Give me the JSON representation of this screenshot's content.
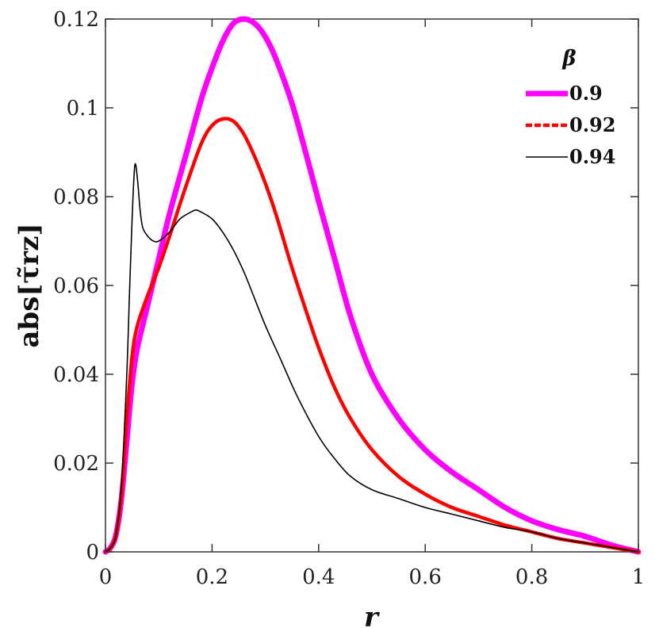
{
  "chart_data": {
    "type": "line",
    "xlabel": "r",
    "ylabel": "abs[τ̃rz]",
    "xlim": [
      0,
      1
    ],
    "ylim": [
      0,
      0.12
    ],
    "x_ticks": [
      "0",
      "0.2",
      "0.4",
      "0.6",
      "0.8",
      "1"
    ],
    "y_ticks": [
      "0",
      "0.02",
      "0.04",
      "0.06",
      "0.08",
      "0.1",
      "0.12"
    ],
    "grid": false,
    "legend": {
      "title": "β",
      "position": "top-right"
    },
    "series": [
      {
        "name": "0.9",
        "color": "#ff00ff",
        "style": "solid-thick",
        "x": [
          0,
          0.01,
          0.02,
          0.03,
          0.04,
          0.05,
          0.06,
          0.08,
          0.1,
          0.12,
          0.15,
          0.18,
          0.2,
          0.22,
          0.24,
          0.26,
          0.28,
          0.3,
          0.32,
          0.35,
          0.38,
          0.4,
          0.43,
          0.46,
          0.5,
          0.55,
          0.6,
          0.65,
          0.7,
          0.75,
          0.8,
          0.85,
          0.9,
          0.95,
          1.0
        ],
        "y": [
          0,
          0.001,
          0.004,
          0.012,
          0.025,
          0.038,
          0.046,
          0.056,
          0.066,
          0.076,
          0.089,
          0.102,
          0.109,
          0.115,
          0.119,
          0.12,
          0.119,
          0.116,
          0.111,
          0.101,
          0.088,
          0.079,
          0.066,
          0.053,
          0.04,
          0.03,
          0.023,
          0.018,
          0.014,
          0.01,
          0.007,
          0.005,
          0.0035,
          0.0015,
          0
        ]
      },
      {
        "name": "0.92",
        "color": "#ff0000",
        "style": "solid",
        "x": [
          0,
          0.01,
          0.02,
          0.03,
          0.04,
          0.05,
          0.06,
          0.08,
          0.1,
          0.12,
          0.15,
          0.18,
          0.2,
          0.22,
          0.24,
          0.26,
          0.28,
          0.3,
          0.32,
          0.35,
          0.38,
          0.4,
          0.43,
          0.46,
          0.5,
          0.55,
          0.6,
          0.65,
          0.7,
          0.75,
          0.8,
          0.85,
          0.9,
          0.95,
          1.0
        ],
        "y": [
          0,
          0.001,
          0.004,
          0.013,
          0.03,
          0.044,
          0.051,
          0.058,
          0.064,
          0.071,
          0.082,
          0.092,
          0.096,
          0.0975,
          0.097,
          0.094,
          0.089,
          0.083,
          0.076,
          0.064,
          0.053,
          0.046,
          0.037,
          0.03,
          0.023,
          0.017,
          0.013,
          0.01,
          0.008,
          0.006,
          0.0045,
          0.003,
          0.002,
          0.001,
          0
        ]
      },
      {
        "name": "0.94",
        "color": "#000000",
        "style": "solid-thin",
        "x": [
          0,
          0.01,
          0.02,
          0.03,
          0.04,
          0.045,
          0.05,
          0.055,
          0.06,
          0.065,
          0.07,
          0.08,
          0.09,
          0.1,
          0.12,
          0.14,
          0.16,
          0.17,
          0.18,
          0.2,
          0.22,
          0.24,
          0.26,
          0.28,
          0.3,
          0.33,
          0.36,
          0.4,
          0.43,
          0.46,
          0.5,
          0.55,
          0.6,
          0.65,
          0.7,
          0.75,
          0.8,
          0.85,
          0.9,
          0.95,
          1.0
        ],
        "y": [
          0,
          0.001,
          0.004,
          0.015,
          0.04,
          0.058,
          0.075,
          0.087,
          0.084,
          0.077,
          0.073,
          0.071,
          0.07,
          0.07,
          0.072,
          0.075,
          0.0765,
          0.077,
          0.0765,
          0.075,
          0.072,
          0.068,
          0.063,
          0.057,
          0.051,
          0.043,
          0.035,
          0.026,
          0.021,
          0.017,
          0.014,
          0.012,
          0.01,
          0.0085,
          0.007,
          0.0055,
          0.0045,
          0.003,
          0.002,
          0.001,
          0
        ]
      }
    ]
  }
}
